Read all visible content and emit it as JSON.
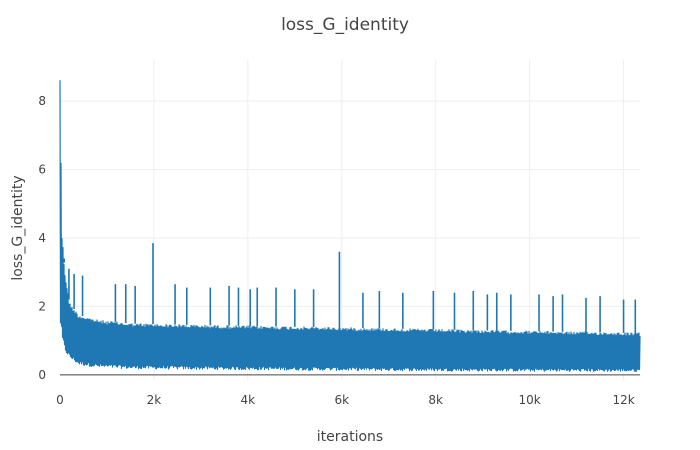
{
  "chart_data": {
    "type": "line",
    "title": "loss_G_identity",
    "xlabel": "iterations",
    "ylabel": "loss_G_identity",
    "xlim": [
      0,
      12350
    ],
    "ylim": [
      -0.15,
      9.2
    ],
    "grid": true,
    "legend": "none",
    "x_ticks": [
      {
        "value": 0,
        "label": "0"
      },
      {
        "value": 2000,
        "label": "2k"
      },
      {
        "value": 4000,
        "label": "4k"
      },
      {
        "value": 6000,
        "label": "6k"
      },
      {
        "value": 8000,
        "label": "8k"
      },
      {
        "value": 10000,
        "label": "10k"
      },
      {
        "value": 12000,
        "label": "12k"
      }
    ],
    "y_ticks": [
      {
        "value": 0,
        "label": "0"
      },
      {
        "value": 2,
        "label": "2"
      },
      {
        "value": 4,
        "label": "4"
      },
      {
        "value": 6,
        "label": "6"
      },
      {
        "value": 8,
        "label": "8"
      }
    ],
    "series": [
      {
        "color": "#1f77b4",
        "envelope": [
          {
            "x": 0,
            "low": 1.5,
            "high": 9.0
          },
          {
            "x": 40,
            "low": 1.0,
            "high": 4.2
          },
          {
            "x": 100,
            "low": 0.7,
            "high": 3.1
          },
          {
            "x": 200,
            "low": 0.5,
            "high": 2.1
          },
          {
            "x": 400,
            "low": 0.3,
            "high": 1.75
          },
          {
            "x": 800,
            "low": 0.22,
            "high": 1.6
          },
          {
            "x": 1500,
            "low": 0.18,
            "high": 1.5
          },
          {
            "x": 3000,
            "low": 0.16,
            "high": 1.45
          },
          {
            "x": 6000,
            "low": 0.13,
            "high": 1.38
          },
          {
            "x": 9000,
            "low": 0.11,
            "high": 1.3
          },
          {
            "x": 12350,
            "low": 0.1,
            "high": 1.22
          }
        ],
        "spikes": [
          {
            "x": 90,
            "y": 3.4
          },
          {
            "x": 190,
            "y": 3.1
          },
          {
            "x": 300,
            "y": 2.95
          },
          {
            "x": 480,
            "y": 2.9
          },
          {
            "x": 1180,
            "y": 2.65
          },
          {
            "x": 1400,
            "y": 2.65
          },
          {
            "x": 1600,
            "y": 2.6
          },
          {
            "x": 1980,
            "y": 3.85
          },
          {
            "x": 2450,
            "y": 2.65
          },
          {
            "x": 2700,
            "y": 2.55
          },
          {
            "x": 3200,
            "y": 2.55
          },
          {
            "x": 3600,
            "y": 2.6
          },
          {
            "x": 3800,
            "y": 2.55
          },
          {
            "x": 4050,
            "y": 2.5
          },
          {
            "x": 4200,
            "y": 2.55
          },
          {
            "x": 4600,
            "y": 2.55
          },
          {
            "x": 5000,
            "y": 2.5
          },
          {
            "x": 5400,
            "y": 2.5
          },
          {
            "x": 5950,
            "y": 3.6
          },
          {
            "x": 6450,
            "y": 2.4
          },
          {
            "x": 6800,
            "y": 2.45
          },
          {
            "x": 7300,
            "y": 2.4
          },
          {
            "x": 7950,
            "y": 2.45
          },
          {
            "x": 8400,
            "y": 2.4
          },
          {
            "x": 8800,
            "y": 2.45
          },
          {
            "x": 9100,
            "y": 2.35
          },
          {
            "x": 9300,
            "y": 2.4
          },
          {
            "x": 9600,
            "y": 2.35
          },
          {
            "x": 10200,
            "y": 2.35
          },
          {
            "x": 10500,
            "y": 2.3
          },
          {
            "x": 10700,
            "y": 2.35
          },
          {
            "x": 11200,
            "y": 2.25
          },
          {
            "x": 11500,
            "y": 2.3
          },
          {
            "x": 12000,
            "y": 2.2
          },
          {
            "x": 12250,
            "y": 2.2
          }
        ]
      }
    ]
  }
}
